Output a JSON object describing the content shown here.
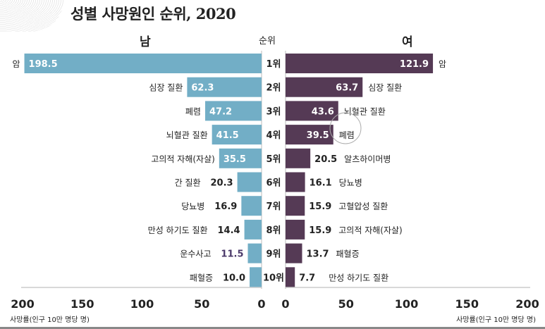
{
  "chart_data": {
    "type": "bar",
    "orientation": "horizontal-butterfly",
    "title": "성별 사망원인 순위, 2020",
    "rank_header": "순위",
    "ranks": [
      "1위",
      "2위",
      "3위",
      "4위",
      "5위",
      "6위",
      "7위",
      "8위",
      "9위",
      "10위"
    ],
    "xlim": [
      0,
      200
    ],
    "x_ticks": [
      "0",
      "50",
      "100",
      "150",
      "200"
    ],
    "xlabel": "사망률(인구 10만 명당 명)",
    "series": [
      {
        "name": "남",
        "color": "#72aec6",
        "categories": [
          "암",
          "심장 질환",
          "폐렴",
          "뇌혈관 질환",
          "고의적 자해(자살)",
          "간 질환",
          "당뇨병",
          "만성 하기도 질환",
          "운수사고",
          "패혈증"
        ],
        "values": [
          198.5,
          62.3,
          47.2,
          41.5,
          35.5,
          20.3,
          16.9,
          14.4,
          11.5,
          10.0
        ],
        "labels": [
          "198.5",
          "62.3",
          "47.2",
          "41.5",
          "35.5",
          "20.3",
          "16.9",
          "14.4",
          "11.5",
          "10.0"
        ]
      },
      {
        "name": "여",
        "color": "#553a55",
        "categories": [
          "암",
          "심장 질환",
          "뇌혈관 질환",
          "폐렴",
          "알츠하이머병",
          "당뇨병",
          "고혈압성 질환",
          "고의적 자해(자살)",
          "패혈증",
          "만성 하기도 질환"
        ],
        "values": [
          121.9,
          63.7,
          43.6,
          39.5,
          20.5,
          16.1,
          15.9,
          15.9,
          13.7,
          7.7
        ],
        "labels": [
          "121.9",
          "63.7",
          "43.6",
          "39.5",
          "20.5",
          "16.1",
          "15.9",
          "15.9",
          "13.7",
          "7.7"
        ]
      }
    ],
    "grid": false
  }
}
